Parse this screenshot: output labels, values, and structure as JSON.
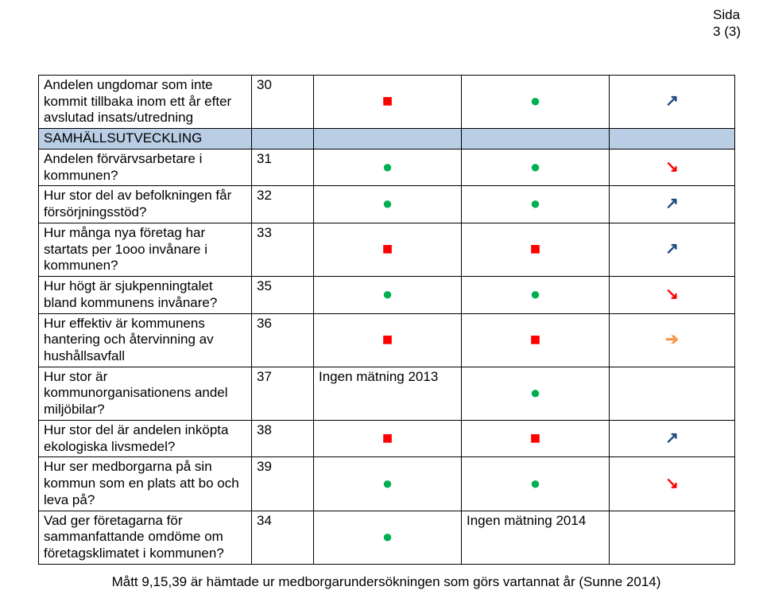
{
  "header": {
    "label": "Sida",
    "pagenum": "3 (3)"
  },
  "table": {
    "section_bg": "#b9cde5",
    "border_color": "#000000",
    "colors": {
      "red": "#ff0000",
      "green": "#00b050",
      "blue": "#1f497d",
      "amber": "#f79646"
    },
    "rows": [
      {
        "type": "data",
        "label": "Andelen ungdomar som inte kommit tillbaka inom ett år efter avslutad insats/utredning",
        "num": "30",
        "c3": {
          "kind": "sq",
          "color": "red"
        },
        "c4": {
          "kind": "dot",
          "color": "green"
        },
        "c5": {
          "kind": "arr-upright",
          "color": "blue"
        }
      },
      {
        "type": "section",
        "label": "SAMHÄLLSUTVECKLING"
      },
      {
        "type": "data",
        "label": "Andelen förvärvsarbetare i kommunen?",
        "num": "31",
        "c3": {
          "kind": "dot",
          "color": "green"
        },
        "c4": {
          "kind": "dot",
          "color": "green"
        },
        "c5": {
          "kind": "arr-downright",
          "color": "red"
        }
      },
      {
        "type": "data",
        "label": "Hur stor del av befolkningen får försörjningsstöd?",
        "num": "32",
        "c3": {
          "kind": "dot",
          "color": "green"
        },
        "c4": {
          "kind": "dot",
          "color": "green"
        },
        "c5": {
          "kind": "arr-upright",
          "color": "blue"
        }
      },
      {
        "type": "data",
        "label": "Hur många nya företag har startats per 1ooo invånare i kommunen?",
        "num": "33",
        "c3": {
          "kind": "sq",
          "color": "red"
        },
        "c4": {
          "kind": "sq",
          "color": "red"
        },
        "c5": {
          "kind": "arr-upright",
          "color": "blue"
        }
      },
      {
        "type": "data",
        "label": "Hur högt är sjukpenningtalet bland kommunens invånare?",
        "num": "35",
        "c3": {
          "kind": "dot",
          "color": "green"
        },
        "c4": {
          "kind": "dot",
          "color": "green"
        },
        "c5": {
          "kind": "arr-downright",
          "color": "red"
        }
      },
      {
        "type": "data",
        "label": "Hur effektiv är kommunens hantering och återvinning av hushållsavfall",
        "num": "36",
        "c3": {
          "kind": "sq",
          "color": "red"
        },
        "c4": {
          "kind": "sq",
          "color": "red"
        },
        "c5": {
          "kind": "arr-right",
          "color": "amber"
        }
      },
      {
        "type": "data",
        "label": "Hur stor är kommunorganisationens andel miljöbilar?",
        "num": "37",
        "c3": {
          "kind": "text",
          "text": "Ingen mätning 2013"
        },
        "c4": {
          "kind": "dot",
          "color": "green"
        },
        "c5": {
          "kind": "text",
          "text": ""
        }
      },
      {
        "type": "data",
        "label": "Hur stor del är andelen inköpta ekologiska livsmedel?",
        "num": "38",
        "c3": {
          "kind": "sq",
          "color": "red"
        },
        "c4": {
          "kind": "sq",
          "color": "red"
        },
        "c5": {
          "kind": "arr-upright",
          "color": "blue"
        }
      },
      {
        "type": "data",
        "label": "Hur ser medborgarna på sin kommun som en plats att bo och leva på?",
        "num": "39",
        "c3": {
          "kind": "dot",
          "color": "green"
        },
        "c4": {
          "kind": "dot",
          "color": "green"
        },
        "c5": {
          "kind": "arr-downright",
          "color": "red"
        }
      },
      {
        "type": "data",
        "label": "Vad ger företagarna för sammanfattande omdöme om företagsklimatet i kommunen?",
        "num": "34",
        "c3": {
          "kind": "dot",
          "color": "green"
        },
        "c4": {
          "kind": "text",
          "text": "Ingen mätning 2014"
        },
        "c5": {
          "kind": "text",
          "text": ""
        }
      }
    ]
  },
  "footnote": "Mått 9,15,39 är hämtade ur medborgarundersökningen som görs vartannat år (Sunne 2014)"
}
